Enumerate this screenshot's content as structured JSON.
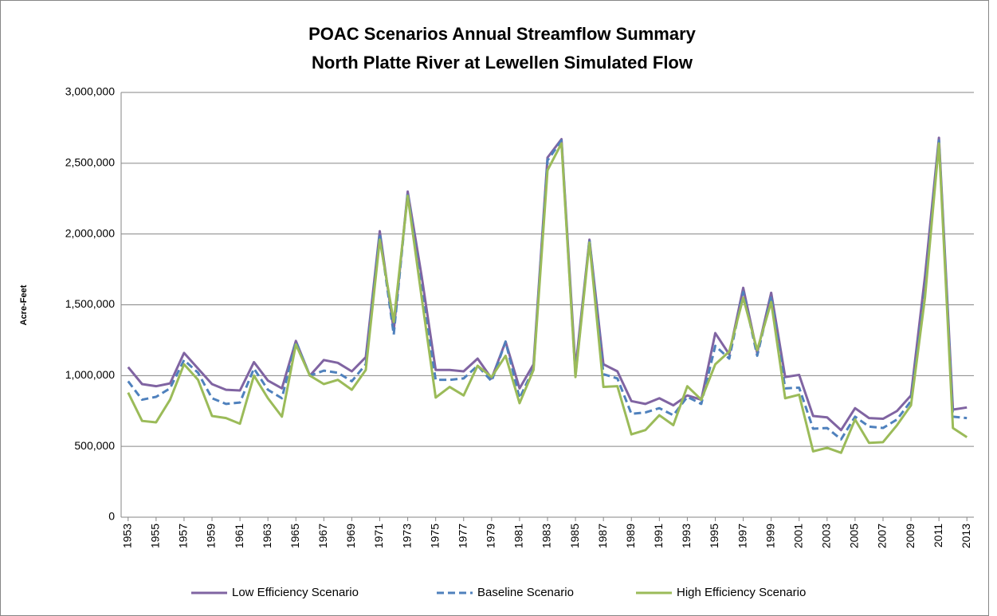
{
  "chart_data": {
    "type": "line",
    "title": "POAC Scenarios Annual Streamflow Summary",
    "subtitle": "North Platte River at Lewellen Simulated Flow",
    "y_label": "Acre-Feet",
    "x": [
      1953,
      1954,
      1955,
      1956,
      1957,
      1958,
      1959,
      1960,
      1961,
      1962,
      1963,
      1964,
      1965,
      1966,
      1967,
      1968,
      1969,
      1970,
      1971,
      1972,
      1973,
      1974,
      1975,
      1976,
      1977,
      1978,
      1979,
      1980,
      1981,
      1982,
      1983,
      1984,
      1985,
      1986,
      1987,
      1988,
      1989,
      1990,
      1991,
      1992,
      1993,
      1994,
      1995,
      1996,
      1997,
      1998,
      1999,
      2000,
      2001,
      2002,
      2003,
      2004,
      2005,
      2006,
      2007,
      2008,
      2009,
      2010,
      2011,
      2012,
      2013
    ],
    "xlim": [
      1952.5,
      2013.5
    ],
    "xticks": [
      1953,
      1955,
      1957,
      1959,
      1961,
      1963,
      1965,
      1967,
      1969,
      1971,
      1973,
      1975,
      1977,
      1979,
      1981,
      1983,
      1985,
      1987,
      1989,
      1991,
      1993,
      1995,
      1997,
      1999,
      2001,
      2003,
      2005,
      2007,
      2009,
      2011,
      2013
    ],
    "ylim": [
      0,
      3000000
    ],
    "yticks": [
      0,
      {
        "value": 500000,
        "label": "500,000"
      },
      {
        "value": 1000000,
        "label": "1,000,000"
      },
      {
        "value": 1500000,
        "label": "1,500,000"
      },
      {
        "value": 2000000,
        "label": "2,000,000"
      },
      {
        "value": 2500000,
        "label": "2,500,000"
      },
      {
        "value": 3000000,
        "label": "3,000,000"
      }
    ],
    "grid": true,
    "legend": "bottom",
    "series": [
      {
        "name": "Low Efficiency Scenario",
        "color": "#8064a2",
        "dashed": false,
        "values": [
          1060000,
          940000,
          925000,
          945000,
          1160000,
          1050000,
          940000,
          900000,
          895000,
          1095000,
          965000,
          910000,
          1245000,
          1000000,
          1110000,
          1090000,
          1030000,
          1130000,
          2020000,
          1320000,
          2300000,
          1700000,
          1040000,
          1040000,
          1030000,
          1120000,
          980000,
          1240000,
          910000,
          1080000,
          2540000,
          2670000,
          1050000,
          1960000,
          1080000,
          1030000,
          820000,
          800000,
          840000,
          790000,
          860000,
          830000,
          1300000,
          1150000,
          1620000,
          1160000,
          1585000,
          990000,
          1005000,
          715000,
          705000,
          615000,
          770000,
          700000,
          695000,
          750000,
          860000,
          1700000,
          2680000,
          760000,
          775000
        ]
      },
      {
        "name": "Baseline Scenario",
        "color": "#4f81bd",
        "dashed": true,
        "values": [
          960000,
          830000,
          850000,
          910000,
          1110000,
          1020000,
          840000,
          800000,
          810000,
          1050000,
          900000,
          840000,
          1240000,
          1000000,
          1035000,
          1020000,
          960000,
          1080000,
          2000000,
          1290000,
          2290000,
          1600000,
          970000,
          970000,
          980000,
          1070000,
          960000,
          1240000,
          840000,
          1050000,
          2520000,
          2660000,
          1000000,
          1960000,
          1010000,
          980000,
          730000,
          740000,
          770000,
          720000,
          850000,
          800000,
          1210000,
          1120000,
          1590000,
          1140000,
          1560000,
          910000,
          915000,
          625000,
          630000,
          550000,
          710000,
          640000,
          630000,
          690000,
          820000,
          1600000,
          2660000,
          710000,
          700000
        ]
      },
      {
        "name": "High Efficiency Scenario",
        "color": "#9bbb59",
        "dashed": false,
        "values": [
          880000,
          680000,
          670000,
          830000,
          1080000,
          970000,
          715000,
          700000,
          660000,
          1000000,
          840000,
          710000,
          1220000,
          1000000,
          940000,
          970000,
          900000,
          1040000,
          1960000,
          1380000,
          2270000,
          1550000,
          845000,
          920000,
          860000,
          1070000,
          990000,
          1140000,
          805000,
          1040000,
          2450000,
          2640000,
          990000,
          1940000,
          920000,
          925000,
          585000,
          615000,
          720000,
          650000,
          925000,
          830000,
          1080000,
          1170000,
          1550000,
          1180000,
          1520000,
          840000,
          865000,
          465000,
          490000,
          455000,
          690000,
          525000,
          530000,
          650000,
          790000,
          1550000,
          2640000,
          630000,
          565000
        ]
      }
    ]
  }
}
